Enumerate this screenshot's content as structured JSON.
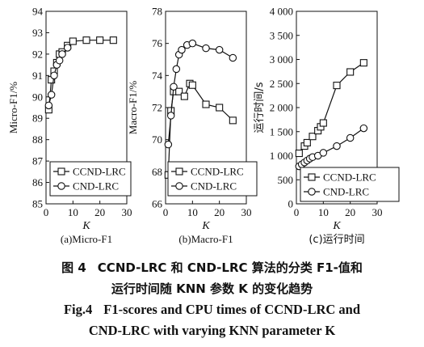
{
  "chart_data": [
    {
      "type": "line",
      "caption": "(a)Micro-F1",
      "xlabel": "K",
      "ylabel": "Micro-F1/%",
      "xlim": [
        0,
        30
      ],
      "ylim": [
        85,
        94
      ],
      "xticks": [
        "0",
        "10",
        "20",
        "30"
      ],
      "yticks": [
        "85",
        "86",
        "87",
        "88",
        "89",
        "90",
        "91",
        "92",
        "93",
        "94"
      ],
      "legend_position": "bottom-right",
      "series": [
        {
          "name": "CCND-LRC",
          "marker": "square",
          "x": [
            1,
            2,
            3,
            4,
            5,
            6,
            8,
            10,
            15,
            20,
            25
          ],
          "y": [
            89.4,
            90.8,
            91.2,
            91.6,
            92.0,
            92.1,
            92.4,
            92.6,
            92.65,
            92.65,
            92.65
          ]
        },
        {
          "name": "CND-LRC",
          "marker": "circle",
          "x": [
            1,
            2,
            3,
            4,
            5,
            6,
            8
          ],
          "y": [
            89.6,
            90.1,
            91.0,
            91.5,
            91.7,
            92.0,
            92.3
          ]
        }
      ]
    },
    {
      "type": "line",
      "caption": "(b)Macro-F1",
      "xlabel": "K",
      "ylabel": "Macro-F1/%",
      "xlim": [
        0,
        30
      ],
      "ylim": [
        66,
        78
      ],
      "xticks": [
        "0",
        "10",
        "20",
        "30"
      ],
      "yticks": [
        "66",
        "68",
        "70",
        "72",
        "74",
        "76",
        "78"
      ],
      "legend_position": "bottom-right",
      "series": [
        {
          "name": "CCND-LRC",
          "marker": "square",
          "x": [
            1,
            2,
            3,
            5,
            7,
            9,
            10,
            15,
            20,
            25
          ],
          "y": [
            67.8,
            71.8,
            73.0,
            73.0,
            72.7,
            73.5,
            73.4,
            72.2,
            72.0,
            71.2
          ]
        },
        {
          "name": "CND-LRC",
          "marker": "circle",
          "x": [
            1,
            2,
            3,
            4,
            5,
            6,
            8,
            10,
            15,
            20,
            25
          ],
          "y": [
            69.7,
            71.5,
            73.3,
            74.4,
            75.3,
            75.6,
            75.9,
            76.0,
            75.7,
            75.6,
            75.1
          ]
        }
      ]
    },
    {
      "type": "line",
      "caption": "(c)运行时间",
      "xlabel": "K",
      "ylabel": "运行时间/s",
      "xlim": [
        0,
        30
      ],
      "ylim": [
        0,
        4000
      ],
      "xticks": [
        "0",
        "10",
        "20",
        "30"
      ],
      "yticks": [
        "0",
        "500",
        "1 000",
        "1 500",
        "2 000",
        "2 500",
        "3 000",
        "3 500",
        "4 000"
      ],
      "legend_position": "bottom-right",
      "series": [
        {
          "name": "CCND-LRC",
          "marker": "square",
          "x": [
            1,
            3,
            4,
            6,
            8,
            9,
            10,
            15,
            20,
            25
          ],
          "y": [
            1050,
            1200,
            1270,
            1400,
            1520,
            1600,
            1680,
            2460,
            2740,
            2930
          ]
        },
        {
          "name": "CND-LRC",
          "marker": "circle",
          "x": [
            1,
            2,
            3,
            4,
            5,
            6,
            8,
            10,
            15,
            20,
            25
          ],
          "y": [
            780,
            820,
            860,
            900,
            940,
            970,
            1000,
            1060,
            1200,
            1370,
            1570
          ]
        }
      ]
    }
  ],
  "caption": {
    "zh_line1": {
      "label": "图 4",
      "text": "CCND-LRC 和 CND-LRC 算法的分类 F1-值和"
    },
    "zh_line2": "运行时间随 KNN 参数 K 的变化趋势",
    "en_line1": {
      "label": "Fig.4",
      "text": "F1-scores and CPU times of CCND-LRC and"
    },
    "en_line2": "CND-LRC with varying KNN parameter K"
  }
}
